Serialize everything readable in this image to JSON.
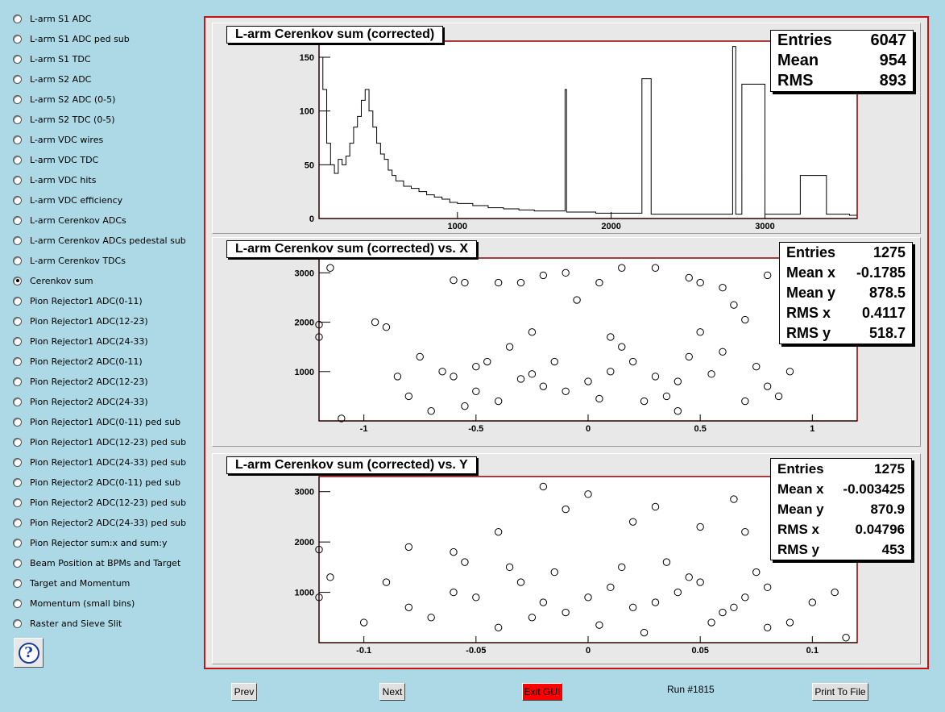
{
  "sidebar": {
    "selected_index": 13,
    "items": [
      "L-arm S1 ADC",
      "L-arm S1 ADC ped sub",
      "L-arm S1 TDC",
      "L-arm S2 ADC",
      "L-arm S2 ADC (0-5)",
      "L-arm S2 TDC (0-5)",
      "L-arm VDC wires",
      "L-arm VDC TDC",
      "L-arm VDC hits",
      "L-arm VDC efficiency",
      "L-arm Cerenkov ADCs",
      "L-arm Cerenkov ADCs pedestal sub",
      "L-arm Cerenkov TDCs",
      "Cerenkov sum",
      "Pion Rejector1 ADC(0-11)",
      "Pion Rejector1 ADC(12-23)",
      "Pion Rejector1 ADC(24-33)",
      "Pion Rejector2 ADC(0-11)",
      "Pion Rejector2 ADC(12-23)",
      "Pion Rejector2 ADC(24-33)",
      "Pion Rejector1 ADC(0-11) ped sub",
      "Pion Rejector1 ADC(12-23) ped sub",
      "Pion Rejector1 ADC(24-33) ped sub",
      "Pion Rejector2 ADC(0-11) ped sub",
      "Pion Rejector2 ADC(12-23) ped sub",
      "Pion Rejector2 ADC(24-33) ped sub",
      "Pion Rejector sum:x and sum:y",
      "Beam Position at BPMs and Target",
      "Target and Momentum",
      "Momentum (small bins)",
      "Raster and Sieve Slit"
    ],
    "help_icon": "question-mark-icon"
  },
  "buttons": {
    "prev": "Prev",
    "next": "Next",
    "exit": "Exit GUI",
    "print": "Print To File",
    "run_label": "Run #1815"
  },
  "colors": {
    "background": "#add8e6",
    "canvas_border": "#cc1111",
    "exit_button": "#ff0000",
    "axis_frame": "#8b0000"
  },
  "chart_data": [
    {
      "type": "histogram",
      "title": "L-arm Cerenkov sum (corrected)",
      "xlim": [
        100,
        3600
      ],
      "ylim": [
        0,
        165
      ],
      "xticks": [
        1000,
        2000,
        3000
      ],
      "yticks": [
        0,
        50,
        100,
        150
      ],
      "stats": [
        [
          "Entries",
          "6047"
        ],
        [
          "Mean",
          "954"
        ],
        [
          "RMS",
          "893"
        ]
      ],
      "bins_x": [
        100,
        125,
        150,
        175,
        200,
        225,
        250,
        275,
        300,
        325,
        350,
        375,
        400,
        425,
        450,
        475,
        500,
        525,
        550,
        575,
        600,
        650,
        700,
        750,
        800,
        850,
        900,
        950,
        1000,
        1100,
        1200,
        1300,
        1400,
        1500,
        1600,
        1700,
        1710,
        1800,
        1900,
        2000,
        2100,
        2200,
        2260,
        2400,
        2600,
        2790,
        2810,
        2850,
        3000,
        3230,
        3400,
        3550
      ],
      "bins_y": [
        150,
        120,
        70,
        50,
        42,
        55,
        50,
        58,
        70,
        85,
        95,
        110,
        120,
        100,
        85,
        70,
        60,
        55,
        45,
        40,
        35,
        30,
        28,
        25,
        22,
        20,
        18,
        15,
        14,
        12,
        10,
        9,
        8,
        7,
        7,
        120,
        6,
        6,
        5,
        5,
        5,
        130,
        4,
        4,
        4,
        160,
        4,
        125,
        4,
        40,
        4,
        3
      ]
    },
    {
      "type": "scatter",
      "title": "L-arm Cerenkov sum (corrected) vs. X",
      "xlim": [
        -1.2,
        1.2
      ],
      "ylim": [
        0,
        3300
      ],
      "xticks": [
        -1,
        -0.5,
        0,
        0.5,
        1
      ],
      "yticks": [
        1000,
        2000,
        3000
      ],
      "stats": [
        [
          "Entries",
          "1275"
        ],
        [
          "Mean x",
          "-0.1785"
        ],
        [
          "Mean y",
          "878.5"
        ],
        [
          "RMS x",
          "0.4117"
        ],
        [
          "RMS y",
          "518.7"
        ]
      ],
      "points": [
        [
          -1.15,
          3100
        ],
        [
          -1.2,
          1700
        ],
        [
          -1.2,
          1950
        ],
        [
          -1.1,
          50
        ],
        [
          -0.95,
          2000
        ],
        [
          -0.9,
          1900
        ],
        [
          -0.6,
          2850
        ],
        [
          -0.55,
          2800
        ],
        [
          -0.4,
          2800
        ],
        [
          -0.3,
          2800
        ],
        [
          -0.2,
          2950
        ],
        [
          -0.1,
          3000
        ],
        [
          -0.05,
          2450
        ],
        [
          0.05,
          2800
        ],
        [
          0.15,
          3100
        ],
        [
          0.3,
          3100
        ],
        [
          0.45,
          2900
        ],
        [
          0.5,
          2800
        ],
        [
          0.6,
          2700
        ],
        [
          0.8,
          2950
        ],
        [
          0.65,
          2350
        ],
        [
          0.7,
          2050
        ],
        [
          0.9,
          1000
        ],
        [
          0.85,
          500
        ],
        [
          0.8,
          700
        ],
        [
          0.7,
          400
        ],
        [
          -0.8,
          500
        ],
        [
          -0.7,
          200
        ],
        [
          -0.6,
          900
        ],
        [
          -0.5,
          1100
        ],
        [
          -0.45,
          1200
        ],
        [
          -0.3,
          850
        ],
        [
          -0.25,
          950
        ],
        [
          -0.2,
          700
        ],
        [
          -0.1,
          600
        ],
        [
          0.0,
          800
        ],
        [
          0.1,
          1000
        ],
        [
          0.2,
          1200
        ],
        [
          0.3,
          900
        ],
        [
          0.35,
          500
        ],
        [
          0.4,
          200
        ],
        [
          -0.5,
          600
        ],
        [
          -0.35,
          1500
        ],
        [
          0.15,
          1500
        ],
        [
          0.45,
          1300
        ],
        [
          -0.75,
          1300
        ],
        [
          -0.65,
          1000
        ],
        [
          0.55,
          950
        ],
        [
          0.6,
          1400
        ],
        [
          0.25,
          400
        ],
        [
          -0.15,
          1200
        ],
        [
          -0.4,
          400
        ],
        [
          0.05,
          450
        ],
        [
          0.4,
          800
        ],
        [
          -0.55,
          300
        ],
        [
          -0.25,
          1800
        ],
        [
          0.1,
          1700
        ],
        [
          0.5,
          1800
        ],
        [
          -0.85,
          900
        ],
        [
          0.75,
          1100
        ]
      ]
    },
    {
      "type": "scatter",
      "title": "L-arm Cerenkov sum (corrected) vs. Y",
      "xlim": [
        -0.12,
        0.12
      ],
      "ylim": [
        0,
        3300
      ],
      "xticks": [
        -0.1,
        -0.05,
        0,
        0.05,
        0.1
      ],
      "yticks": [
        1000,
        2000,
        3000
      ],
      "stats": [
        [
          "Entries",
          "1275"
        ],
        [
          "Mean x",
          "-0.003425"
        ],
        [
          "Mean y",
          "870.9"
        ],
        [
          "RMS x",
          "0.04796"
        ],
        [
          "RMS y",
          "453"
        ]
      ],
      "points": [
        [
          -0.12,
          1850
        ],
        [
          -0.115,
          1300
        ],
        [
          -0.12,
          900
        ],
        [
          -0.02,
          3100
        ],
        [
          -0.01,
          2650
        ],
        [
          0.0,
          2950
        ],
        [
          0.02,
          2400
        ],
        [
          0.03,
          2700
        ],
        [
          0.05,
          2300
        ],
        [
          0.065,
          2850
        ],
        [
          0.07,
          2200
        ],
        [
          -0.04,
          2200
        ],
        [
          -0.08,
          1900
        ],
        [
          -0.06,
          1800
        ],
        [
          0.1,
          800
        ],
        [
          0.11,
          1000
        ],
        [
          0.115,
          100
        ],
        [
          0.09,
          400
        ],
        [
          0.08,
          300
        ],
        [
          -0.1,
          400
        ],
        [
          -0.08,
          700
        ],
        [
          -0.06,
          1000
        ],
        [
          -0.05,
          900
        ],
        [
          -0.03,
          1200
        ],
        [
          -0.02,
          800
        ],
        [
          -0.01,
          600
        ],
        [
          0.0,
          900
        ],
        [
          0.01,
          1100
        ],
        [
          0.02,
          700
        ],
        [
          0.03,
          800
        ],
        [
          0.04,
          1000
        ],
        [
          0.05,
          1200
        ],
        [
          0.06,
          600
        ],
        [
          0.07,
          900
        ],
        [
          0.08,
          1100
        ],
        [
          -0.07,
          500
        ],
        [
          -0.04,
          300
        ],
        [
          -0.015,
          1400
        ],
        [
          0.015,
          1500
        ],
        [
          0.045,
          1300
        ],
        [
          -0.09,
          1200
        ],
        [
          0.055,
          400
        ],
        [
          0.025,
          200
        ],
        [
          -0.035,
          1500
        ],
        [
          0.035,
          1600
        ],
        [
          -0.055,
          1600
        ],
        [
          0.075,
          1400
        ],
        [
          -0.025,
          500
        ],
        [
          0.005,
          350
        ],
        [
          0.065,
          700
        ]
      ]
    }
  ]
}
